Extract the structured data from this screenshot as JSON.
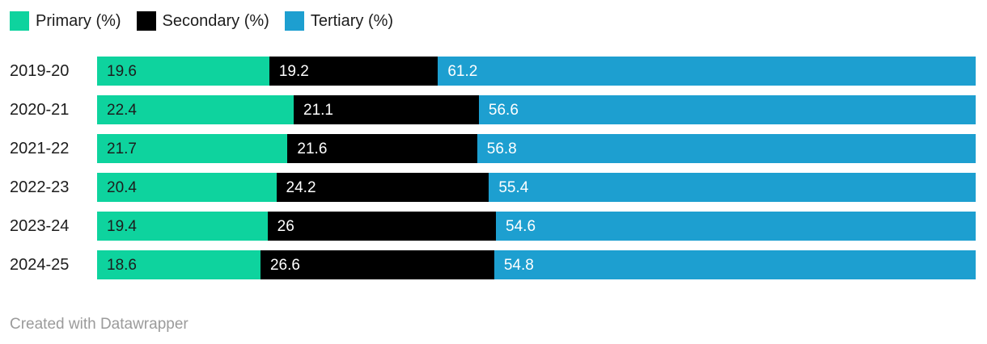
{
  "footer": {
    "credit": "Created with Datawrapper"
  },
  "chart_data": {
    "type": "bar",
    "stacked": true,
    "orientation": "horizontal",
    "grid": false,
    "legend_position": "top",
    "value_labels": "inside-start",
    "xlim": [
      0,
      100
    ],
    "categories": [
      "2019-20",
      "2020-21",
      "2021-22",
      "2022-23",
      "2023-24",
      "2024-25"
    ],
    "series": [
      {
        "name": "Primary (%)",
        "color": "#0ed39e",
        "label_color": "#1d1d1d",
        "values": [
          19.6,
          22.4,
          21.7,
          20.4,
          19.4,
          18.6
        ]
      },
      {
        "name": "Secondary (%)",
        "color": "#000000",
        "label_color": "#ffffff",
        "values": [
          19.2,
          21.1,
          21.6,
          24.2,
          26,
          26.6
        ]
      },
      {
        "name": "Tertiary (%)",
        "color": "#1d9fd0",
        "label_color": "#ffffff",
        "values": [
          61.2,
          56.6,
          56.8,
          55.4,
          54.6,
          54.8
        ]
      }
    ]
  }
}
